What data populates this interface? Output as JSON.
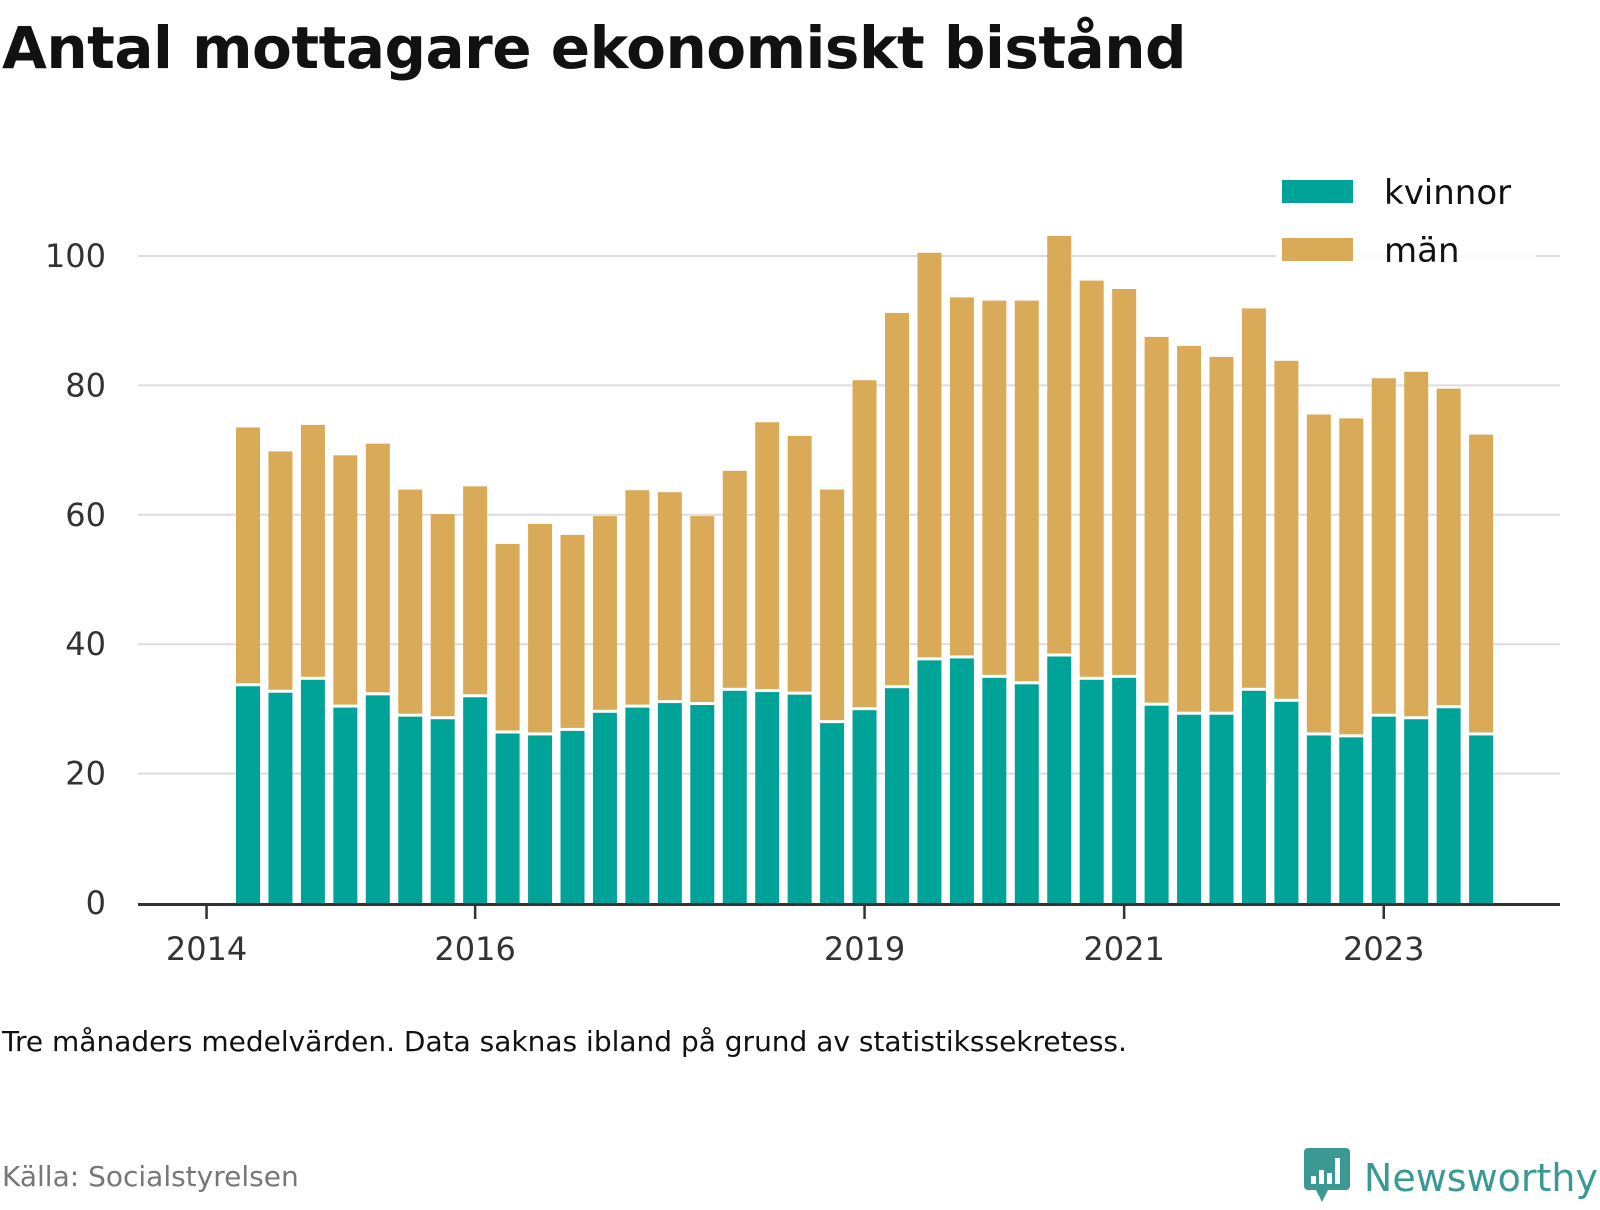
{
  "chart_data": {
    "type": "bar",
    "stacked": true,
    "title": "Antal mottagare ekonomiskt bistånd",
    "xlabel": "",
    "ylabel": "",
    "ylim": [
      0,
      110
    ],
    "yticks": [
      0,
      20,
      40,
      60,
      80,
      100
    ],
    "xticks": [
      {
        "label": "2014",
        "index": -1
      },
      {
        "label": "2016",
        "index": 7
      },
      {
        "label": "2019",
        "index": 19
      },
      {
        "label": "2021",
        "index": 27
      },
      {
        "label": "2023",
        "index": 35
      }
    ],
    "series": [
      {
        "name": "kvinnor",
        "color": "#00a398",
        "values": [
          33.5,
          32.5,
          34.5,
          30.2,
          32.1,
          28.8,
          28.4,
          31.8,
          26.2,
          25.9,
          26.6,
          29.4,
          30.2,
          30.9,
          30.6,
          32.8,
          32.6,
          32.2,
          27.8,
          29.8,
          33.2,
          37.5,
          37.8,
          34.8,
          33.8,
          38.1,
          34.5,
          34.8,
          30.5,
          29.1,
          29.1,
          32.8,
          31.1,
          25.9,
          25.6,
          28.8,
          28.4,
          30.1,
          25.9
        ],
        "totals": [
          73.5,
          69.8,
          73.9,
          69.2,
          71.0,
          63.9,
          60.1,
          64.4,
          55.5,
          58.6,
          56.9,
          59.8,
          63.8,
          63.5,
          59.8,
          66.8,
          74.3,
          72.2,
          63.9,
          80.8,
          91.2,
          100.5,
          93.6,
          93.1,
          93.1,
          103.1,
          96.2,
          94.9,
          87.5,
          86.1,
          84.4,
          91.9,
          83.8,
          75.5,
          74.9,
          81.1,
          82.1,
          79.5,
          72.4
        ]
      },
      {
        "name": "män",
        "color": "#d9aa57",
        "values": [
          40.0,
          37.3,
          39.4,
          39.0,
          38.9,
          35.1,
          31.7,
          32.6,
          29.3,
          32.7,
          30.3,
          30.4,
          33.6,
          32.6,
          29.2,
          34.0,
          41.7,
          40.0,
          36.1,
          51.0,
          58.0,
          63.0,
          55.8,
          58.3,
          59.3,
          65.0,
          61.7,
          60.1,
          57.0,
          57.0,
          55.3,
          59.1,
          52.7,
          49.6,
          49.3,
          52.3,
          53.7,
          49.4,
          46.5
        ]
      }
    ],
    "legend": {
      "position": "top-right",
      "entries": [
        "kvinnor",
        "män"
      ]
    },
    "grid": true
  },
  "footer": {
    "note": "Tre månaders medelvärden. Data saknas ibland på grund av statistikssekretess.",
    "source": "Källa: Socialstyrelsen",
    "brand": "Newsworthy"
  },
  "colors": {
    "kvinnor": "#00a398",
    "man": "#d9aa57",
    "grid": "#dddddd",
    "axis": "#333333",
    "brand": "#3a9a93"
  },
  "icons": {
    "brand_logo": "newsworthy-logo-icon"
  }
}
